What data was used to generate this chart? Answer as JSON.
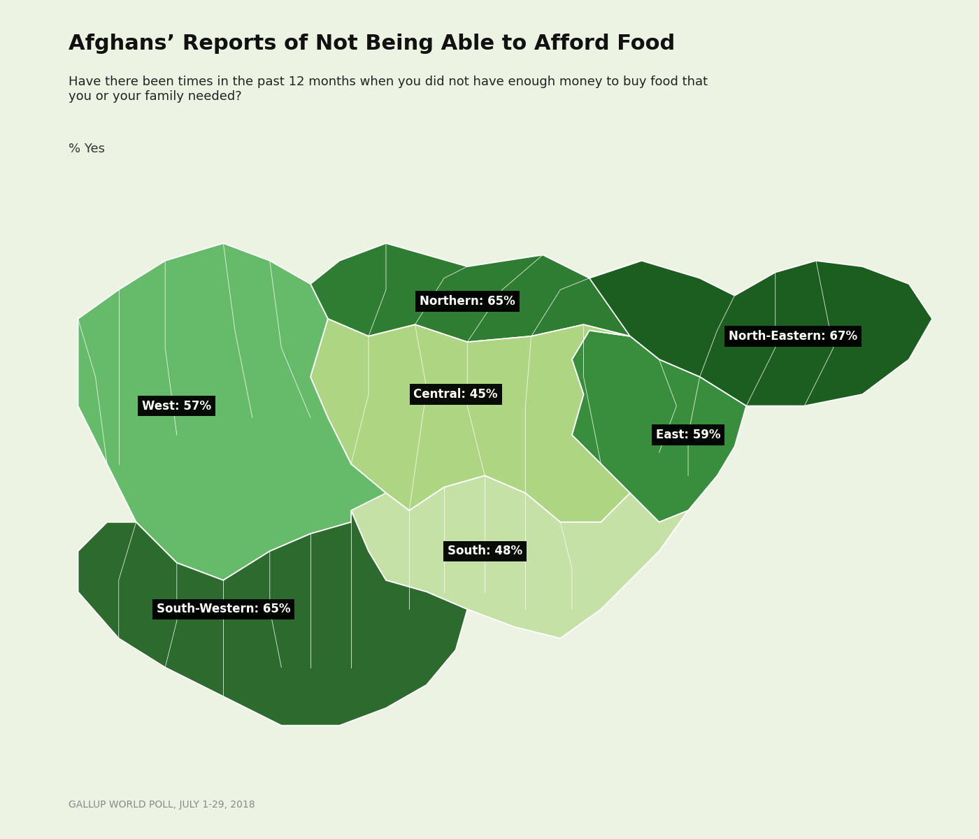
{
  "title": "Afghans’ Reports of Not Being Able to Afford Food",
  "subtitle": "Have there been times in the past 12 months when you did not have enough money to buy food that\nyou or your family needed?",
  "ylabel": "% Yes",
  "source": "GALLUP WORLD POLL, JULY 1-29, 2018",
  "background_color": "#edf3e2",
  "region_colors": {
    "Northern": "#2e7d32",
    "North-Eastern": "#1b5e20",
    "East": "#388e3c",
    "Central": "#aed581",
    "West": "#66bb6a",
    "South": "#c5e1a5",
    "South-Western": "#2d6a2d"
  },
  "region_labels": {
    "Northern": "Northern: 65%",
    "North-Eastern": "North-Eastern: 67%",
    "East": "East: 59%",
    "Central": "Central: 45%",
    "West": "West: 57%",
    "South": "South: 48%",
    "South-Western": "South-Western: 65%"
  },
  "title_fontsize": 22,
  "subtitle_fontsize": 13,
  "label_fontsize": 12,
  "source_fontsize": 10
}
